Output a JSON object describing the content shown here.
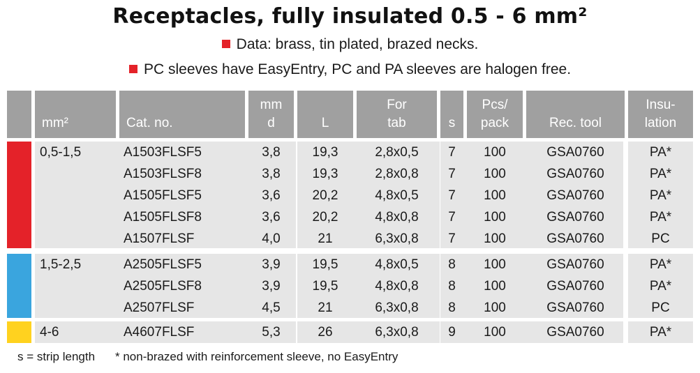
{
  "title": "Receptacles, fully insulated 0.5 - 6 mm²",
  "notes": [
    "Data: brass, tin plated, brazed necks.",
    "PC sleeves have EasyEntry, PC and PA sleeves are halogen free."
  ],
  "headers": [
    {
      "key": "mm2",
      "lines": [
        "mm²"
      ],
      "align": "l"
    },
    {
      "key": "cat",
      "lines": [
        "Cat. no."
      ],
      "align": "l"
    },
    {
      "key": "d",
      "lines": [
        "mm",
        "d"
      ],
      "align": "c"
    },
    {
      "key": "L",
      "lines": [
        "L"
      ],
      "align": "c"
    },
    {
      "key": "tab",
      "lines": [
        "For",
        "tab"
      ],
      "align": "c"
    },
    {
      "key": "s",
      "lines": [
        "s"
      ],
      "align": "c"
    },
    {
      "key": "pcs",
      "lines": [
        "Pcs/",
        "pack"
      ],
      "align": "c"
    },
    {
      "key": "tool",
      "lines": [
        "Rec. tool"
      ],
      "align": "c"
    },
    {
      "key": "ins",
      "lines": [
        "Insu-",
        "lation"
      ],
      "align": "c"
    }
  ],
  "groups": [
    {
      "range": "0,5-1,5",
      "color": "#e42229",
      "rows": [
        {
          "cat": "A1503FLSF5",
          "d": "3,8",
          "L": "19,3",
          "tab": "2,8x0,5",
          "s": "7",
          "pcs": "100",
          "tool": "GSA0760",
          "ins": "PA*"
        },
        {
          "cat": "A1503FLSF8",
          "d": "3,8",
          "L": "19,3",
          "tab": "2,8x0,8",
          "s": "7",
          "pcs": "100",
          "tool": "GSA0760",
          "ins": "PA*"
        },
        {
          "cat": "A1505FLSF5",
          "d": "3,6",
          "L": "20,2",
          "tab": "4,8x0,5",
          "s": "7",
          "pcs": "100",
          "tool": "GSA0760",
          "ins": "PA*"
        },
        {
          "cat": "A1505FLSF8",
          "d": "3,6",
          "L": "20,2",
          "tab": "4,8x0,8",
          "s": "7",
          "pcs": "100",
          "tool": "GSA0760",
          "ins": "PA*"
        },
        {
          "cat": "A1507FLSF",
          "d": "4,0",
          "L": "21",
          "tab": "6,3x0,8",
          "s": "7",
          "pcs": "100",
          "tool": "GSA0760",
          "ins": "PC"
        }
      ]
    },
    {
      "range": "1,5-2,5",
      "color": "#3aa5de",
      "rows": [
        {
          "cat": "A2505FLSF5",
          "d": "3,9",
          "L": "19,5",
          "tab": "4,8x0,5",
          "s": "8",
          "pcs": "100",
          "tool": "GSA0760",
          "ins": "PA*"
        },
        {
          "cat": "A2505FLSF8",
          "d": "3,9",
          "L": "19,5",
          "tab": "4,8x0,8",
          "s": "8",
          "pcs": "100",
          "tool": "GSA0760",
          "ins": "PA*"
        },
        {
          "cat": "A2507FLSF",
          "d": "4,5",
          "L": "21",
          "tab": "6,3x0,8",
          "s": "8",
          "pcs": "100",
          "tool": "GSA0760",
          "ins": "PC"
        }
      ]
    },
    {
      "range": "4-6",
      "color": "#ffd21f",
      "rows": [
        {
          "cat": "A4607FLSF",
          "d": "5,3",
          "L": "26",
          "tab": "6,3x0,8",
          "s": "9",
          "pcs": "100",
          "tool": "GSA0760",
          "ins": "PA*"
        }
      ]
    }
  ],
  "footnotes": [
    "s = strip length",
    "* non-brazed with reinforcement sleeve, no EasyEntry"
  ]
}
